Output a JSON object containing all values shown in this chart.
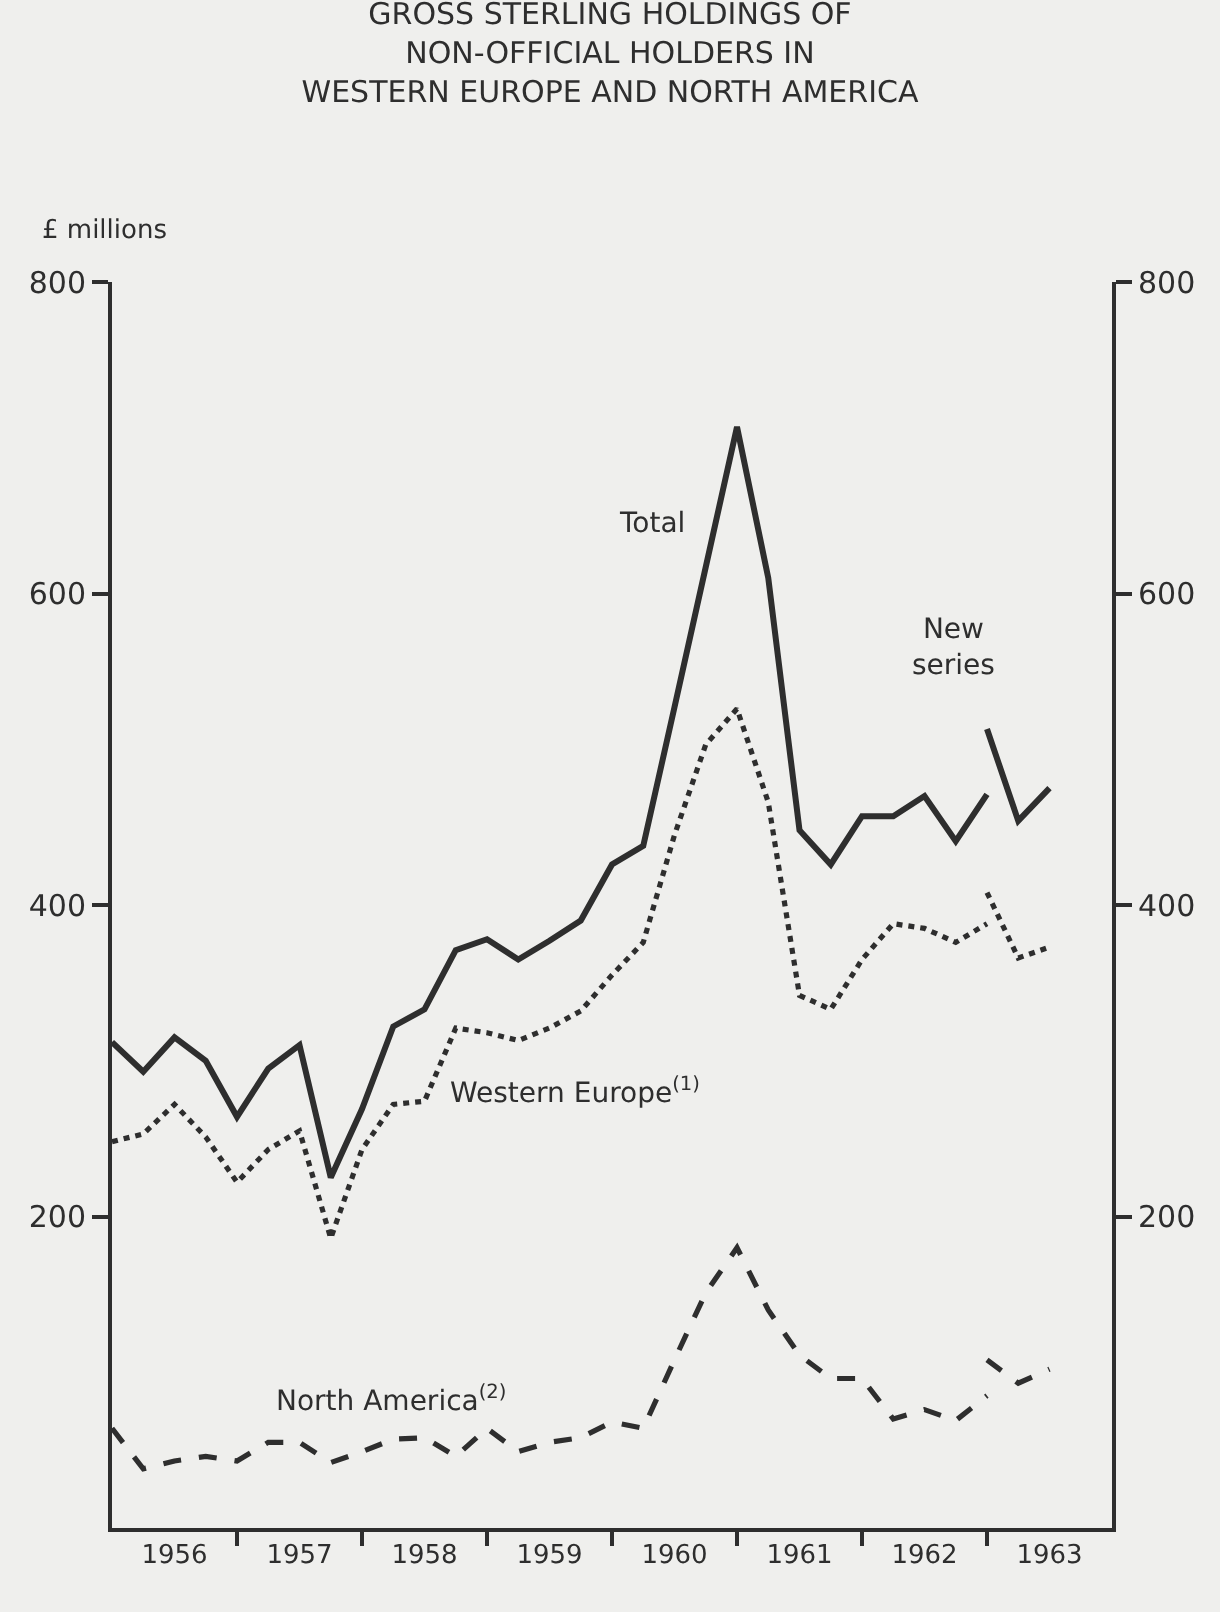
{
  "chart_data": {
    "type": "line",
    "title": "GROSS STERLING HOLDINGS OF\nNON-OFFICIAL HOLDERS IN\nWESTERN EUROPE AND NORTH AMERICA",
    "ylabel": "£ millions",
    "x": [
      1956.0,
      1956.25,
      1956.5,
      1956.75,
      1957.0,
      1957.25,
      1957.5,
      1957.75,
      1958.0,
      1958.25,
      1958.5,
      1958.75,
      1959.0,
      1959.25,
      1959.5,
      1959.75,
      1960.0,
      1960.25,
      1960.5,
      1960.75,
      1961.0,
      1961.25,
      1961.5,
      1961.75,
      1962.0,
      1962.25,
      1962.5,
      1962.75,
      1963.0
    ],
    "series": [
      {
        "name": "Total",
        "color": "#2e2e2e",
        "line_style": "solid",
        "values": [
          312,
          293,
          315,
          300,
          264,
          295,
          310,
          225,
          269,
          322,
          333,
          371,
          378,
          365,
          377,
          390,
          426,
          438,
          527,
          617,
          707,
          610,
          448,
          426,
          457,
          457,
          470,
          441,
          471
        ]
      },
      {
        "name": "Western Europe$^{(1)}$",
        "color": "#2e2e2e",
        "line_style": "dotted",
        "values": [
          248,
          253,
          272,
          251,
          222,
          243,
          255,
          186,
          243,
          272,
          274,
          321,
          318,
          313,
          321,
          332,
          355,
          376,
          445,
          503,
          526,
          466,
          342,
          333,
          365,
          388,
          385,
          376,
          388
        ]
      },
      {
        "name": "North America$^{(2)}$",
        "color": "#2e2e2e",
        "line_style": "dashed",
        "values": [
          64,
          38,
          43,
          46,
          43,
          55,
          55,
          42,
          49,
          57,
          58,
          46,
          64,
          49,
          55,
          58,
          68,
          64,
          108,
          151,
          180,
          140,
          111,
          96,
          96,
          70,
          76,
          69,
          85
        ]
      },
      {
        "color": "#2e2e2e",
        "line_style": "solid",
        "x": [
          1963.0,
          1963.25,
          1963.5
        ],
        "values": [
          513,
          454,
          475
        ]
      },
      {
        "color": "#2e2e2e",
        "line_style": "dotted",
        "x": [
          1963.0,
          1963.25,
          1963.5
        ],
        "values": [
          408,
          366,
          373
        ]
      },
      {
        "color": "#2e2e2e",
        "line_style": "dashed",
        "x": [
          1963.0,
          1963.25,
          1963.5
        ],
        "values": [
          108,
          93,
          102
        ]
      }
    ],
    "annotations": [
      "New\nseries"
    ],
    "xlim": [
      1956,
      1964
    ],
    "xticks": [
      {
        "value": 1956.5,
        "label": "1956"
      },
      {
        "value": 1957.5,
        "label": "1957"
      },
      {
        "value": 1958.5,
        "label": "1958"
      },
      {
        "value": 1959.5,
        "label": "1959"
      },
      {
        "value": 1960.5,
        "label": "1960"
      },
      {
        "value": 1961.5,
        "label": "1961"
      },
      {
        "value": 1962.5,
        "label": "1962"
      },
      {
        "value": 1963.5,
        "label": "1963"
      },
      {
        "value": 1957,
        "label": null
      },
      {
        "value": 1958,
        "label": null
      },
      {
        "value": 1959,
        "label": null
      },
      {
        "value": 1960,
        "label": null
      },
      {
        "value": 1961,
        "label": null
      },
      {
        "value": 1962,
        "label": null
      },
      {
        "value": 1963,
        "label": null
      }
    ],
    "ylim": [
      0,
      800
    ],
    "yticks": [
      200,
      400,
      600,
      800
    ],
    "y2lim": [
      0,
      800
    ],
    "y2ticks": [
      200,
      400,
      600,
      800
    ],
    "grid": false,
    "legend": false,
    "marker": "none"
  }
}
